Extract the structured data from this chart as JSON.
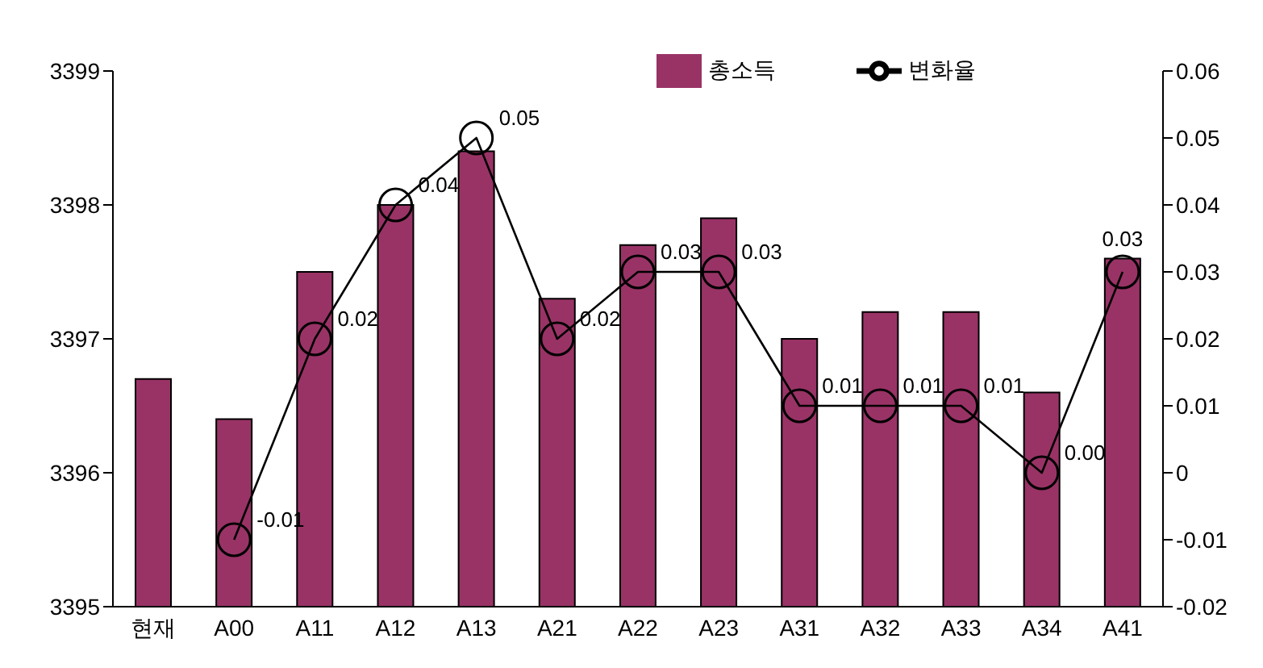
{
  "chart_data": {
    "type": "bar",
    "categories": [
      "현재",
      "A00",
      "A11",
      "A12",
      "A13",
      "A21",
      "A22",
      "A23",
      "A31",
      "A32",
      "A33",
      "A34",
      "A41"
    ],
    "series": [
      {
        "name": "총소득",
        "color": "#993366",
        "values": [
          3396.7,
          3396.4,
          3397.5,
          3398.0,
          3398.4,
          3397.3,
          3397.7,
          3397.9,
          3397.0,
          3397.2,
          3397.2,
          3396.6,
          3397.6
        ]
      },
      {
        "name": "변화율",
        "type": "line",
        "axis": "y2",
        "color": "#000000",
        "marker": "circle",
        "values": [
          null,
          -0.01,
          0.02,
          0.04,
          0.05,
          0.02,
          0.03,
          0.03,
          0.01,
          0.01,
          0.01,
          0.0,
          0.03
        ],
        "value_labels": [
          null,
          "-0.01",
          "0.02",
          "0.04",
          "0.05",
          "0.02",
          "0.03",
          "0.03",
          "0.01",
          "0.01",
          "0.01",
          "0.00",
          "0.03"
        ]
      }
    ],
    "ylim": [
      3395,
      3399
    ],
    "yticks": [
      3395,
      3396,
      3397,
      3398,
      3399
    ],
    "y2lim": [
      -0.02,
      0.06
    ],
    "y2ticks": [
      -0.02,
      -0.01,
      0,
      0.01,
      0.02,
      0.03,
      0.04,
      0.05,
      0.06
    ],
    "grid": false,
    "legend": "top right"
  }
}
